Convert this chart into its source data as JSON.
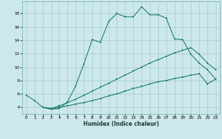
{
  "xlabel": "Humidex (Indice chaleur)",
  "background_color": "#cce8ea",
  "grid_color": "#aaccce",
  "line_color": "#1a7a6e",
  "xlim": [
    -0.5,
    23.5
  ],
  "ylim": [
    3.0,
    19.8
  ],
  "xticks": [
    0,
    1,
    2,
    3,
    4,
    5,
    6,
    7,
    8,
    9,
    10,
    11,
    12,
    13,
    14,
    15,
    16,
    17,
    18,
    19,
    20,
    21,
    22,
    23
  ],
  "yticks": [
    4,
    6,
    8,
    10,
    12,
    14,
    16,
    18
  ],
  "line1_x": [
    0,
    1,
    2,
    3,
    4,
    5,
    6,
    7,
    8,
    9,
    10,
    11,
    12,
    13,
    14,
    15,
    16,
    17,
    18,
    19,
    20,
    21,
    22,
    23
  ],
  "line1_y": [
    5.8,
    5.0,
    4.0,
    3.7,
    3.8,
    4.8,
    7.2,
    10.5,
    14.1,
    13.7,
    16.8,
    18.0,
    17.5,
    17.5,
    19.0,
    17.8,
    17.8,
    17.3,
    14.2,
    14.1,
    11.9,
    10.6,
    9.6,
    8.2
  ],
  "line2_x": [
    2,
    3,
    4,
    5,
    6,
    7,
    8,
    9,
    10,
    11,
    12,
    13,
    14,
    15,
    16,
    17,
    18,
    19,
    20,
    21,
    22,
    23
  ],
  "line2_y": [
    4.0,
    3.8,
    4.2,
    4.7,
    5.2,
    5.8,
    6.4,
    7.0,
    7.6,
    8.2,
    8.8,
    9.4,
    10.0,
    10.6,
    11.1,
    11.6,
    12.1,
    12.5,
    12.9,
    11.9,
    10.6,
    9.6
  ],
  "line3_x": [
    2,
    3,
    4,
    5,
    6,
    7,
    8,
    9,
    10,
    11,
    12,
    13,
    14,
    15,
    16,
    17,
    18,
    19,
    20,
    21,
    22,
    23
  ],
  "line3_y": [
    4.0,
    3.8,
    4.0,
    4.2,
    4.5,
    4.7,
    5.0,
    5.3,
    5.7,
    6.0,
    6.4,
    6.8,
    7.1,
    7.5,
    7.8,
    8.0,
    8.3,
    8.5,
    8.8,
    9.0,
    7.5,
    8.2
  ]
}
